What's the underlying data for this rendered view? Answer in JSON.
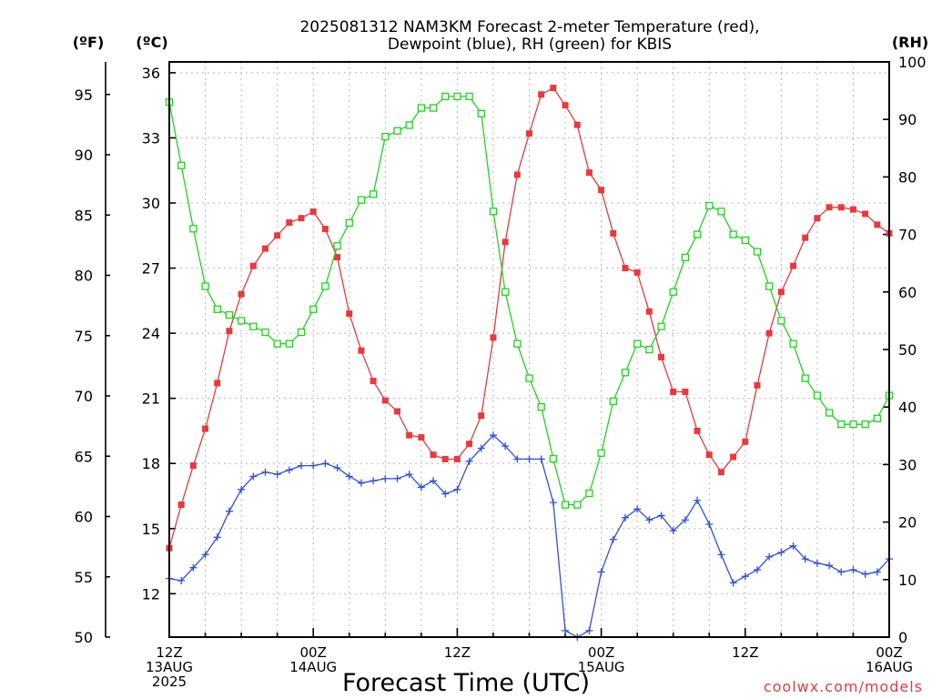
{
  "chart_data": {
    "type": "line",
    "title_lines": [
      "2025081312 NAM3KM Forecast 2-meter Temperature (red),",
      "Dewpoint (blue), RH (green) for KBIS"
    ],
    "xlabel": "Forecast Time (UTC)",
    "credit": "coolwx.com/models",
    "units": {
      "fahrenheit": "(ºF)",
      "celsius": "(ºC)",
      "rh": "(RH)"
    },
    "x_range_hours": [
      0,
      60
    ],
    "celsius_range": [
      10,
      36.5
    ],
    "rh_range": [
      0,
      100
    ],
    "celsius_ticks": [
      12,
      15,
      18,
      21,
      24,
      27,
      30,
      33,
      36
    ],
    "fahrenheit_ticks": [
      50,
      55,
      60,
      65,
      70,
      75,
      80,
      85,
      90,
      95
    ],
    "rh_ticks": [
      0,
      10,
      20,
      30,
      40,
      50,
      60,
      70,
      80,
      90,
      100
    ],
    "x_ticks": [
      {
        "hour": 0,
        "lines": [
          "12Z",
          "13AUG",
          "2025"
        ]
      },
      {
        "hour": 12,
        "lines": [
          "00Z",
          "14AUG"
        ]
      },
      {
        "hour": 24,
        "lines": [
          "12Z"
        ]
      },
      {
        "hour": 36,
        "lines": [
          "00Z",
          "15AUG"
        ]
      },
      {
        "hour": 48,
        "lines": [
          "12Z"
        ]
      },
      {
        "hour": 60,
        "lines": [
          "00Z",
          "16AUG"
        ]
      }
    ],
    "grid": true,
    "series": [
      {
        "name": "Temperature",
        "axis": "celsius",
        "color": "#e8393d",
        "marker": "filled-square",
        "x": [
          0,
          1,
          2,
          3,
          4,
          5,
          6,
          7,
          8,
          9,
          10,
          11,
          12,
          13,
          14,
          15,
          16,
          17,
          18,
          19,
          20,
          21,
          22,
          23,
          24,
          25,
          26,
          27,
          28,
          29,
          30,
          31,
          32,
          33,
          34,
          35,
          36,
          37,
          38,
          39,
          40,
          41,
          42,
          43,
          44,
          45,
          46,
          47,
          48,
          49,
          50,
          51,
          52,
          53,
          54,
          55,
          56,
          57,
          58,
          59,
          60
        ],
        "values": [
          14.1,
          16.1,
          17.9,
          19.6,
          21.7,
          24.1,
          25.8,
          27.1,
          27.9,
          28.5,
          29.1,
          29.3,
          29.6,
          28.8,
          27.5,
          24.9,
          23.2,
          21.8,
          20.9,
          20.4,
          19.3,
          19.2,
          18.4,
          18.2,
          18.2,
          18.9,
          20.2,
          23.8,
          28.2,
          31.3,
          33.2,
          35.0,
          35.3,
          34.5,
          33.6,
          31.4,
          30.6,
          28.6,
          27.0,
          26.8,
          25.0,
          22.9,
          21.3,
          21.3,
          19.5,
          18.4,
          17.6,
          18.3,
          19.0,
          21.6,
          24.0,
          25.9,
          27.1,
          28.4,
          29.3,
          29.8,
          29.8,
          29.7,
          29.5,
          29.0,
          28.6
        ]
      },
      {
        "name": "Dewpoint",
        "axis": "celsius",
        "color": "#2f4fe0",
        "marker": "plus",
        "x": [
          0,
          1,
          2,
          3,
          4,
          5,
          6,
          7,
          8,
          9,
          10,
          11,
          12,
          13,
          14,
          15,
          16,
          17,
          18,
          19,
          20,
          21,
          22,
          23,
          24,
          25,
          26,
          27,
          28,
          29,
          30,
          31,
          32,
          33,
          34,
          35,
          36,
          37,
          38,
          39,
          40,
          41,
          42,
          43,
          44,
          45,
          46,
          47,
          48,
          49,
          50,
          51,
          52,
          53,
          54,
          55,
          56,
          57,
          58,
          59,
          60
        ],
        "values": [
          12.7,
          12.6,
          13.2,
          13.8,
          14.6,
          15.8,
          16.8,
          17.4,
          17.6,
          17.5,
          17.7,
          17.9,
          17.9,
          18.0,
          17.8,
          17.4,
          17.1,
          17.2,
          17.3,
          17.3,
          17.5,
          16.9,
          17.2,
          16.6,
          16.8,
          18.1,
          18.7,
          19.3,
          18.8,
          18.2,
          18.2,
          18.2,
          16.2,
          10.3,
          10.0,
          10.3,
          13.0,
          14.5,
          15.5,
          15.9,
          15.4,
          15.6,
          14.9,
          15.4,
          16.3,
          15.2,
          13.8,
          12.5,
          12.8,
          13.1,
          13.7,
          13.9,
          14.2,
          13.6,
          13.4,
          13.3,
          13.0,
          13.1,
          12.9,
          13.0,
          13.6
        ]
      },
      {
        "name": "RH",
        "axis": "rh",
        "color": "#21d321",
        "marker": "open-square",
        "x": [
          0,
          1,
          2,
          3,
          4,
          5,
          6,
          7,
          8,
          9,
          10,
          11,
          12,
          13,
          14,
          15,
          16,
          17,
          18,
          19,
          20,
          21,
          22,
          23,
          24,
          25,
          26,
          27,
          28,
          29,
          30,
          31,
          32,
          33,
          34,
          35,
          36,
          37,
          38,
          39,
          40,
          41,
          42,
          43,
          44,
          45,
          46,
          47,
          48,
          49,
          50,
          51,
          52,
          53,
          54,
          55,
          56,
          57,
          58,
          59,
          60
        ],
        "values": [
          93,
          82,
          71,
          61,
          57,
          56,
          55,
          54,
          53,
          51,
          51,
          53,
          57,
          61,
          68,
          72,
          76,
          77,
          87,
          88,
          89,
          92,
          92,
          94,
          94,
          94,
          91,
          74,
          60,
          51,
          45,
          40,
          31,
          23,
          23,
          25,
          32,
          41,
          46,
          51,
          50,
          54,
          60,
          66,
          70,
          75,
          74,
          70,
          69,
          67,
          61,
          55,
          51,
          45,
          42,
          39,
          37,
          37,
          37,
          38,
          42
        ]
      }
    ]
  }
}
